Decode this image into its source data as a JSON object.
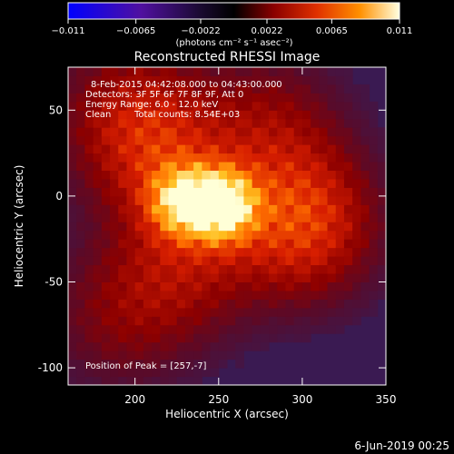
{
  "chart_data": {
    "type": "heatmap",
    "title": "Reconstructed RHESSI Image",
    "xlabel": "Heliocentric X (arcsec)",
    "ylabel": "Heliocentric Y (arcsec)",
    "xlim": [
      160,
      350
    ],
    "ylim": [
      -110,
      75
    ],
    "x_ticks": [
      200,
      250,
      300,
      350
    ],
    "y_ticks": [
      -100,
      -50,
      0,
      50
    ],
    "colorbar": {
      "range": [
        -0.011,
        0.011
      ],
      "tick_values": [
        -0.011,
        -0.0065,
        -0.0022,
        0.0022,
        0.0065,
        0.011
      ],
      "tick_labels": [
        "−0.011",
        "−0.0065",
        "−0.0022",
        "0.0022",
        "0.0065",
        "0.011"
      ],
      "label": "(photons cm⁻² s⁻¹ asec⁻²)",
      "colors": [
        "#0000ff",
        "#5010a0",
        "#1a0a30",
        "#000000",
        "#8a0000",
        "#e03000",
        "#ff9000",
        "#ffffe0"
      ]
    },
    "annotations": [
      "8-Feb-2015 04:42:08.000 to 04:43:00.000",
      "Detectors: 3F 5F 6F 7F 8F 9F, Att 0",
      "Energy Range: 6.0 - 12.0 keV",
      "Clean",
      "Total counts: 8.54E+03"
    ],
    "peak_label": "Position of Peak = [257,-7]",
    "peak": [
      257,
      -7
    ],
    "sources": [
      {
        "x": 252,
        "y": -5,
        "flux": 0.011
      },
      {
        "x": 228,
        "y": -3,
        "flux": 0.008
      },
      {
        "x": 300,
        "y": -15,
        "flux": 0.0065
      },
      {
        "x": 215,
        "y": 25,
        "flux": 0.004
      },
      {
        "x": 195,
        "y": 50,
        "flux": 0.003
      },
      {
        "x": 230,
        "y": -40,
        "flux": 0.0035
      },
      {
        "x": 280,
        "y": 40,
        "flux": 0.003
      },
      {
        "x": 190,
        "y": -70,
        "flux": 0.0025
      }
    ]
  },
  "footer_date": "6-Jun-2019 00:25"
}
